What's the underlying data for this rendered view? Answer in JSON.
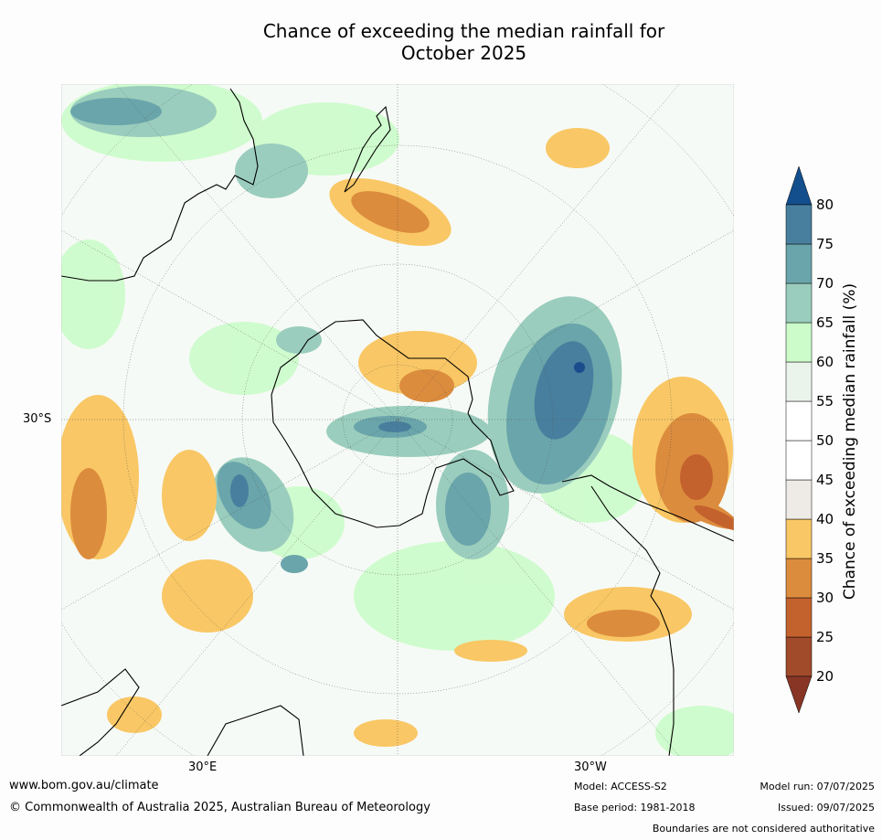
{
  "title": {
    "line1": "Chance of exceeding the median rainfall for",
    "line2": "October 2025"
  },
  "axis_labels": {
    "lat_30s": "30°S",
    "lon_30e": "30°E",
    "lon_30w": "30°W"
  },
  "colorbar": {
    "label": "Chance of exceeding median rainfall (%)",
    "ticks": [
      "20",
      "25",
      "30",
      "35",
      "40",
      "45",
      "50",
      "55",
      "60",
      "65",
      "70",
      "75",
      "80"
    ],
    "colors": [
      "#a14b2b",
      "#c4622e",
      "#dc8c3d",
      "#f9c765",
      "#eeebe6",
      "#ffffff",
      "#ffffff",
      "#eaf4ea",
      "#cbfcca",
      "#9acdbd",
      "#6aa5ab",
      "#487f9e",
      "#1b4c8c"
    ],
    "low_extend_color": "#893526",
    "high_extend_color": "#134f8d"
  },
  "footer": {
    "website": "www.bom.gov.au/climate",
    "copyright": "© Commonwealth of Australia 2025, Australian Bureau of Meteorology",
    "model": "Model: ACCESS-S2",
    "base_period": "Base period: 1981-2018",
    "model_run": "Model run: 07/07/2025",
    "issued": "Issued: 09/07/2025",
    "disclaimer": "Boundaries are not considered authoritative"
  }
}
